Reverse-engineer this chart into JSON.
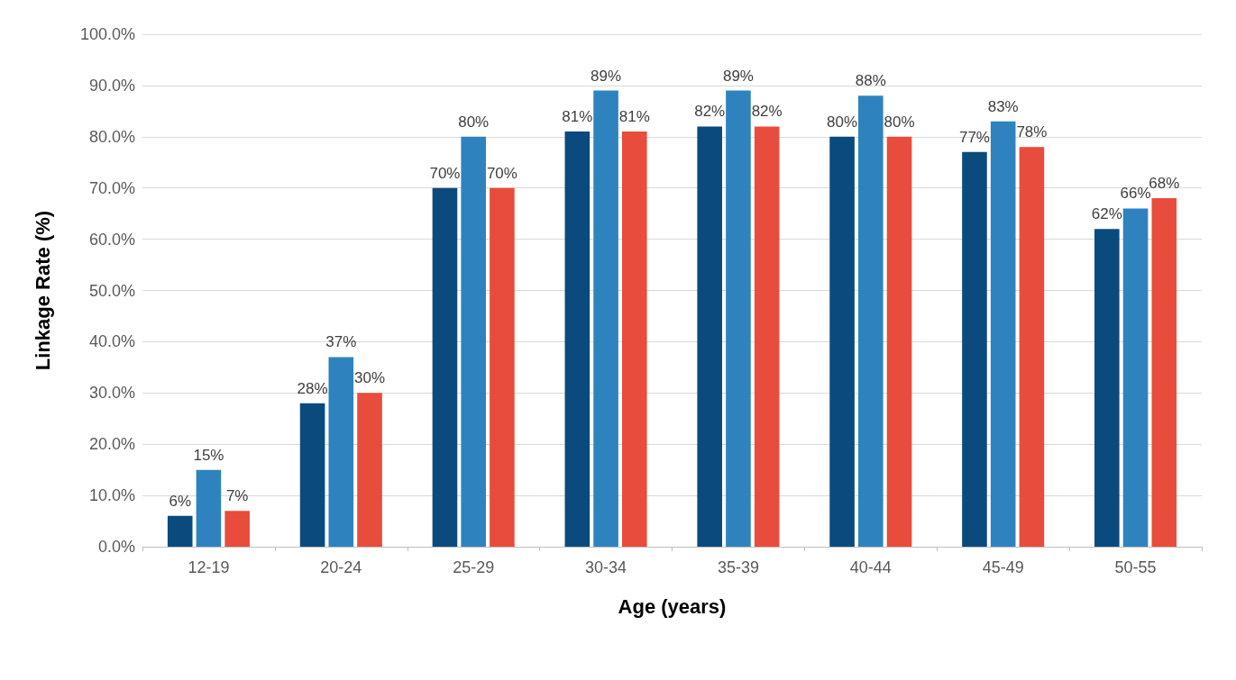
{
  "chart_data": {
    "type": "bar",
    "xlabel": "Age (years)",
    "ylabel": "Linkage Rate (%)",
    "categories": [
      "12-19",
      "20-24",
      "25-29",
      "30-34",
      "35-39",
      "40-44",
      "45-49",
      "50-55"
    ],
    "series": [
      {
        "color": "#0b4a7d",
        "values": [
          6,
          28,
          70,
          81,
          82,
          80,
          77,
          62
        ],
        "value_labels": [
          "6%",
          "28%",
          "70%",
          "81%",
          "82%",
          "80%",
          "77%",
          "62%"
        ]
      },
      {
        "color": "#2e83bf",
        "values": [
          15,
          37,
          80,
          89,
          89,
          88,
          83,
          66
        ],
        "value_labels": [
          "15%",
          "37%",
          "80%",
          "89%",
          "89%",
          "88%",
          "83%",
          "66%"
        ]
      },
      {
        "color": "#e84c3d",
        "values": [
          7,
          30,
          70,
          81,
          82,
          80,
          78,
          68
        ],
        "value_labels": [
          "7%",
          "30%",
          "70%",
          "81%",
          "82%",
          "80%",
          "78%",
          "68%"
        ]
      }
    ],
    "ylim": [
      0,
      100
    ],
    "yticks": [
      {
        "value": 0,
        "label": "0.0%"
      },
      {
        "value": 10,
        "label": "10.0%"
      },
      {
        "value": 20,
        "label": "20.0%"
      },
      {
        "value": 30,
        "label": "30.0%"
      },
      {
        "value": 40,
        "label": "40.0%"
      },
      {
        "value": 50,
        "label": "50.0%"
      },
      {
        "value": 60,
        "label": "60.0%"
      },
      {
        "value": 70,
        "label": "70.0%"
      },
      {
        "value": 80,
        "label": "80.0%"
      },
      {
        "value": 90,
        "label": "90.0%"
      },
      {
        "value": 100,
        "label": "100.0%"
      }
    ],
    "grid": "y"
  }
}
